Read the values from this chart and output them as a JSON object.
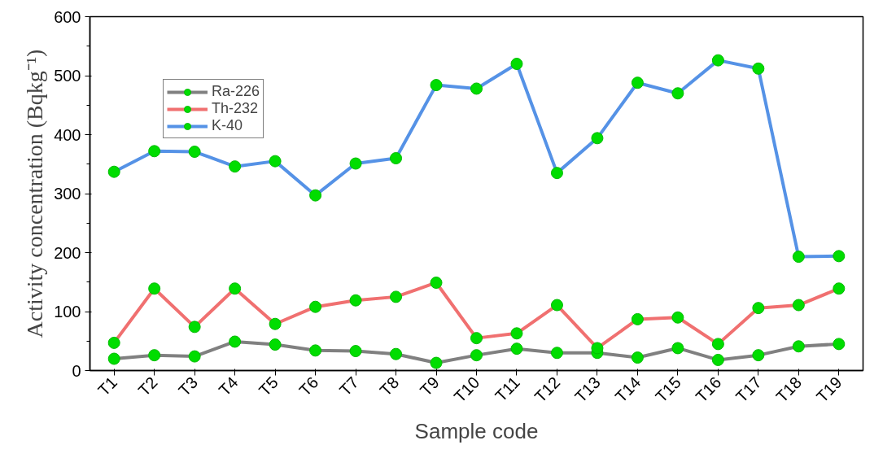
{
  "chart_data": {
    "type": "line",
    "xlabel": "Sample code",
    "ylabel": "Activity concentration (Bqkg⁻¹)",
    "categories": [
      "T1",
      "T2",
      "T3",
      "T4",
      "T5",
      "T6",
      "T7",
      "T8",
      "T9",
      "T10",
      "T11",
      "T12",
      "T13",
      "T14",
      "T15",
      "T16",
      "T17",
      "T18",
      "T19"
    ],
    "series": [
      {
        "name": "Ra-226",
        "color": "#808080",
        "values": [
          20,
          26,
          24,
          49,
          44,
          34,
          33,
          28,
          13,
          26,
          37,
          30,
          30,
          22,
          38,
          18,
          26,
          41,
          45
        ]
      },
      {
        "name": "Th-232",
        "color": "#f07070",
        "values": [
          47,
          139,
          74,
          139,
          79,
          108,
          119,
          125,
          149,
          55,
          63,
          111,
          38,
          87,
          90,
          45,
          106,
          111,
          139
        ]
      },
      {
        "name": "K-40",
        "color": "#5592e6",
        "values": [
          337,
          372,
          371,
          346,
          355,
          297,
          351,
          360,
          484,
          478,
          520,
          335,
          394,
          488,
          470,
          526,
          512,
          193,
          194
        ]
      }
    ],
    "ylim": [
      0,
      600
    ],
    "yticks": [
      0,
      100,
      200,
      300,
      400,
      500,
      600
    ],
    "grid": false,
    "legend": "top left",
    "marker": "circle",
    "line_style": "solid"
  }
}
